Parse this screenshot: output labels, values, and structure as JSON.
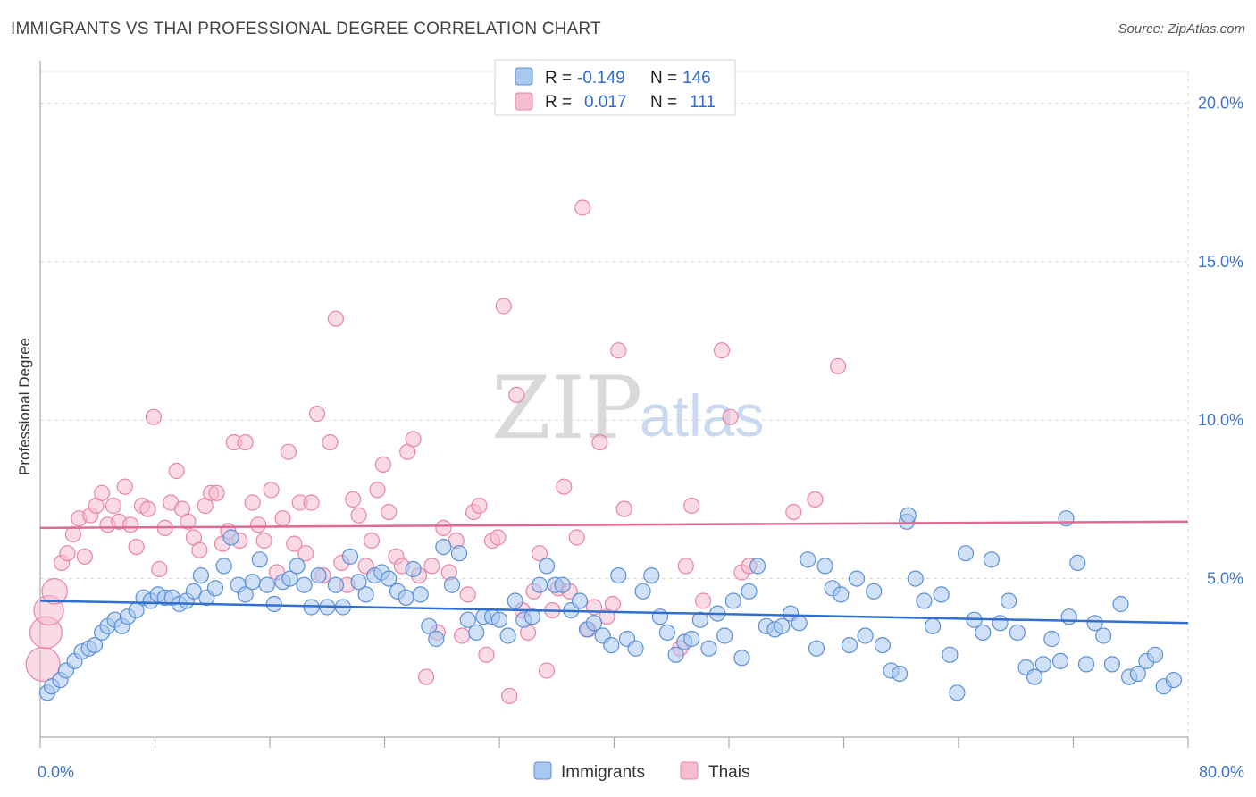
{
  "title": "IMMIGRANTS VS THAI PROFESSIONAL DEGREE CORRELATION CHART",
  "source": "Source: ZipAtlas.com",
  "watermark": {
    "zip": "ZIP",
    "atlas": "atlas"
  },
  "colors": {
    "immigrants_fill": "#a9c8f0",
    "immigrants_stroke": "#5a90d6",
    "immigrants_line": "#2e6fcf",
    "thais_fill": "#f6bcd0",
    "thais_stroke": "#e884a8",
    "thais_line": "#e06a95",
    "grid": "#d8d8d8",
    "tick_label": "#3b74c9"
  },
  "legend": {
    "rows": [
      {
        "r_label": "R =",
        "r_value": "-0.149",
        "n_label": "N =",
        "n_value": "146"
      },
      {
        "r_label": "R =",
        "r_value": "0.017",
        "n_label": "N =",
        "n_value": "111"
      }
    ]
  },
  "chart_data": {
    "type": "scatter",
    "title": "IMMIGRANTS VS THAI PROFESSIONAL DEGREE CORRELATION CHART",
    "xlabel": "",
    "ylabel": "Professional Degree",
    "xlim": [
      0,
      80
    ],
    "ylim": [
      0,
      21
    ],
    "x_tick_labels": [
      "0.0%",
      "80.0%"
    ],
    "y_ticks": [
      5,
      10,
      15,
      20
    ],
    "y_tick_labels": [
      "5.0%",
      "10.0%",
      "15.0%",
      "20.0%"
    ],
    "grid": true,
    "legend_placement": "top-center",
    "series": [
      {
        "name": "Immigrants",
        "r": -0.149,
        "n": 146,
        "trend": {
          "x": [
            0,
            80
          ],
          "y": [
            4.3,
            3.6
          ]
        },
        "points": [
          [
            0.5,
            1.4
          ],
          [
            0.8,
            1.6
          ],
          [
            1.4,
            1.8
          ],
          [
            1.8,
            2.1
          ],
          [
            2.4,
            2.4
          ],
          [
            2.9,
            2.7
          ],
          [
            3.4,
            2.8
          ],
          [
            3.8,
            2.9
          ],
          [
            4.3,
            3.3
          ],
          [
            4.7,
            3.5
          ],
          [
            5.2,
            3.7
          ],
          [
            5.7,
            3.5
          ],
          [
            6.1,
            3.8
          ],
          [
            6.7,
            4.0
          ],
          [
            7.2,
            4.4
          ],
          [
            7.7,
            4.3
          ],
          [
            8.2,
            4.5
          ],
          [
            8.7,
            4.4
          ],
          [
            9.2,
            4.4
          ],
          [
            9.7,
            4.2
          ],
          [
            10.2,
            4.3
          ],
          [
            10.7,
            4.6
          ],
          [
            11.2,
            5.1
          ],
          [
            11.6,
            4.4
          ],
          [
            12.2,
            4.7
          ],
          [
            12.8,
            5.4
          ],
          [
            13.3,
            6.3
          ],
          [
            13.8,
            4.8
          ],
          [
            14.3,
            4.5
          ],
          [
            14.8,
            4.9
          ],
          [
            15.3,
            5.6
          ],
          [
            15.8,
            4.8
          ],
          [
            16.3,
            4.2
          ],
          [
            16.9,
            4.9
          ],
          [
            17.4,
            5.0
          ],
          [
            17.9,
            5.4
          ],
          [
            18.4,
            4.8
          ],
          [
            18.9,
            4.1
          ],
          [
            19.4,
            5.1
          ],
          [
            20.0,
            4.1
          ],
          [
            20.6,
            4.8
          ],
          [
            21.1,
            4.1
          ],
          [
            21.6,
            5.7
          ],
          [
            22.2,
            4.9
          ],
          [
            22.7,
            4.5
          ],
          [
            23.3,
            5.1
          ],
          [
            23.8,
            5.2
          ],
          [
            24.3,
            5.0
          ],
          [
            24.9,
            4.6
          ],
          [
            25.5,
            4.4
          ],
          [
            26.0,
            5.3
          ],
          [
            26.5,
            4.5
          ],
          [
            27.1,
            3.5
          ],
          [
            27.6,
            3.1
          ],
          [
            28.1,
            6.0
          ],
          [
            28.7,
            4.8
          ],
          [
            29.2,
            5.8
          ],
          [
            29.8,
            3.7
          ],
          [
            30.4,
            3.3
          ],
          [
            30.9,
            3.8
          ],
          [
            31.5,
            3.8
          ],
          [
            32.0,
            3.7
          ],
          [
            32.6,
            3.2
          ],
          [
            33.1,
            4.3
          ],
          [
            33.7,
            3.7
          ],
          [
            34.3,
            3.8
          ],
          [
            34.8,
            4.8
          ],
          [
            35.3,
            5.4
          ],
          [
            35.9,
            4.8
          ],
          [
            36.4,
            4.8
          ],
          [
            37.0,
            4.0
          ],
          [
            37.6,
            4.3
          ],
          [
            38.1,
            3.4
          ],
          [
            38.6,
            3.6
          ],
          [
            39.2,
            3.2
          ],
          [
            39.8,
            2.9
          ],
          [
            40.3,
            5.1
          ],
          [
            40.9,
            3.1
          ],
          [
            41.5,
            2.8
          ],
          [
            42.0,
            4.6
          ],
          [
            42.6,
            5.1
          ],
          [
            43.2,
            3.8
          ],
          [
            43.7,
            3.3
          ],
          [
            44.3,
            2.6
          ],
          [
            44.9,
            3.0
          ],
          [
            45.4,
            3.1
          ],
          [
            46.0,
            3.7
          ],
          [
            46.6,
            2.8
          ],
          [
            47.2,
            3.9
          ],
          [
            47.7,
            3.2
          ],
          [
            48.3,
            4.3
          ],
          [
            48.9,
            2.5
          ],
          [
            49.4,
            4.6
          ],
          [
            50.0,
            5.4
          ],
          [
            50.6,
            3.5
          ],
          [
            51.2,
            3.4
          ],
          [
            51.7,
            3.5
          ],
          [
            52.3,
            3.9
          ],
          [
            52.9,
            3.6
          ],
          [
            53.5,
            5.6
          ],
          [
            54.1,
            2.8
          ],
          [
            54.7,
            5.4
          ],
          [
            55.2,
            4.7
          ],
          [
            55.8,
            4.5
          ],
          [
            56.4,
            2.9
          ],
          [
            56.9,
            5.0
          ],
          [
            57.5,
            3.2
          ],
          [
            58.1,
            4.6
          ],
          [
            58.7,
            2.9
          ],
          [
            59.3,
            2.1
          ],
          [
            59.9,
            2.0
          ],
          [
            60.4,
            6.8
          ],
          [
            61.0,
            5.0
          ],
          [
            61.6,
            4.3
          ],
          [
            62.2,
            3.5
          ],
          [
            62.8,
            4.5
          ],
          [
            63.4,
            2.6
          ],
          [
            63.9,
            1.4
          ],
          [
            64.5,
            5.8
          ],
          [
            65.1,
            3.7
          ],
          [
            65.7,
            3.3
          ],
          [
            66.3,
            5.6
          ],
          [
            66.9,
            3.6
          ],
          [
            67.5,
            4.3
          ],
          [
            68.1,
            3.3
          ],
          [
            68.7,
            2.2
          ],
          [
            69.3,
            1.9
          ],
          [
            69.9,
            2.3
          ],
          [
            70.5,
            3.1
          ],
          [
            71.1,
            2.4
          ],
          [
            71.7,
            3.8
          ],
          [
            72.3,
            5.5
          ],
          [
            72.9,
            2.3
          ],
          [
            73.5,
            3.6
          ],
          [
            74.1,
            3.2
          ],
          [
            74.7,
            2.3
          ],
          [
            75.3,
            4.2
          ],
          [
            75.9,
            1.9
          ],
          [
            76.5,
            2.0
          ],
          [
            77.1,
            2.4
          ],
          [
            77.7,
            2.6
          ],
          [
            78.3,
            1.6
          ],
          [
            79.0,
            1.8
          ],
          [
            60.5,
            7.0
          ],
          [
            71.5,
            6.9
          ]
        ]
      },
      {
        "name": "Thais",
        "r": 0.017,
        "n": 111,
        "trend": {
          "x": [
            0,
            80
          ],
          "y": [
            6.6,
            6.8
          ]
        },
        "points": [
          [
            0.2,
            2.3
          ],
          [
            0.4,
            3.3
          ],
          [
            0.6,
            4.0
          ],
          [
            1.0,
            4.6
          ],
          [
            1.5,
            5.5
          ],
          [
            1.9,
            5.8
          ],
          [
            2.3,
            6.4
          ],
          [
            2.7,
            6.9
          ],
          [
            3.1,
            5.7
          ],
          [
            3.5,
            7.0
          ],
          [
            3.9,
            7.3
          ],
          [
            4.3,
            7.7
          ],
          [
            4.7,
            6.7
          ],
          [
            5.1,
            7.3
          ],
          [
            5.5,
            6.8
          ],
          [
            5.9,
            7.9
          ],
          [
            6.3,
            6.7
          ],
          [
            6.7,
            6.0
          ],
          [
            7.1,
            7.3
          ],
          [
            7.5,
            7.2
          ],
          [
            7.9,
            10.1
          ],
          [
            8.3,
            5.3
          ],
          [
            8.7,
            6.6
          ],
          [
            9.1,
            7.4
          ],
          [
            9.5,
            8.4
          ],
          [
            9.9,
            7.2
          ],
          [
            10.3,
            6.8
          ],
          [
            10.7,
            6.3
          ],
          [
            11.1,
            5.9
          ],
          [
            11.5,
            7.3
          ],
          [
            11.9,
            7.7
          ],
          [
            12.3,
            7.7
          ],
          [
            12.7,
            6.1
          ],
          [
            13.1,
            6.5
          ],
          [
            13.5,
            9.3
          ],
          [
            13.9,
            6.2
          ],
          [
            14.3,
            9.3
          ],
          [
            14.8,
            7.4
          ],
          [
            15.2,
            6.7
          ],
          [
            15.6,
            6.2
          ],
          [
            16.1,
            7.8
          ],
          [
            16.5,
            5.2
          ],
          [
            16.9,
            6.9
          ],
          [
            17.3,
            9.0
          ],
          [
            17.7,
            6.1
          ],
          [
            18.1,
            7.4
          ],
          [
            18.5,
            5.8
          ],
          [
            18.9,
            7.4
          ],
          [
            19.3,
            10.2
          ],
          [
            19.7,
            5.1
          ],
          [
            20.2,
            9.3
          ],
          [
            20.6,
            13.2
          ],
          [
            21.0,
            5.5
          ],
          [
            21.4,
            4.8
          ],
          [
            21.8,
            7.5
          ],
          [
            22.2,
            7.0
          ],
          [
            22.7,
            5.4
          ],
          [
            23.1,
            6.2
          ],
          [
            23.5,
            7.8
          ],
          [
            23.9,
            8.6
          ],
          [
            24.3,
            7.1
          ],
          [
            24.8,
            5.7
          ],
          [
            25.2,
            5.4
          ],
          [
            25.6,
            9.0
          ],
          [
            26.0,
            9.4
          ],
          [
            26.4,
            5.1
          ],
          [
            26.9,
            1.9
          ],
          [
            27.3,
            5.4
          ],
          [
            27.7,
            3.3
          ],
          [
            28.1,
            6.6
          ],
          [
            28.5,
            5.2
          ],
          [
            29.0,
            6.2
          ],
          [
            29.4,
            3.2
          ],
          [
            29.8,
            4.5
          ],
          [
            30.2,
            7.1
          ],
          [
            30.6,
            7.3
          ],
          [
            31.1,
            2.6
          ],
          [
            31.5,
            6.2
          ],
          [
            31.9,
            6.3
          ],
          [
            32.3,
            13.6
          ],
          [
            32.7,
            1.3
          ],
          [
            33.2,
            10.8
          ],
          [
            33.6,
            4.0
          ],
          [
            34.0,
            3.3
          ],
          [
            34.4,
            4.6
          ],
          [
            34.8,
            5.8
          ],
          [
            35.3,
            2.1
          ],
          [
            35.7,
            4.0
          ],
          [
            36.1,
            4.7
          ],
          [
            36.5,
            7.9
          ],
          [
            36.9,
            4.6
          ],
          [
            37.4,
            6.3
          ],
          [
            37.8,
            16.7
          ],
          [
            38.2,
            3.4
          ],
          [
            38.6,
            4.1
          ],
          [
            39.0,
            9.3
          ],
          [
            39.5,
            3.8
          ],
          [
            39.9,
            4.2
          ],
          [
            40.3,
            12.2
          ],
          [
            40.7,
            7.2
          ],
          [
            44.6,
            2.8
          ],
          [
            45.0,
            5.4
          ],
          [
            45.4,
            7.3
          ],
          [
            46.2,
            4.3
          ],
          [
            47.5,
            12.2
          ],
          [
            48.1,
            10.1
          ],
          [
            48.9,
            5.2
          ],
          [
            49.4,
            5.4
          ],
          [
            52.5,
            7.1
          ],
          [
            54.0,
            7.5
          ],
          [
            55.6,
            11.7
          ]
        ]
      }
    ]
  }
}
